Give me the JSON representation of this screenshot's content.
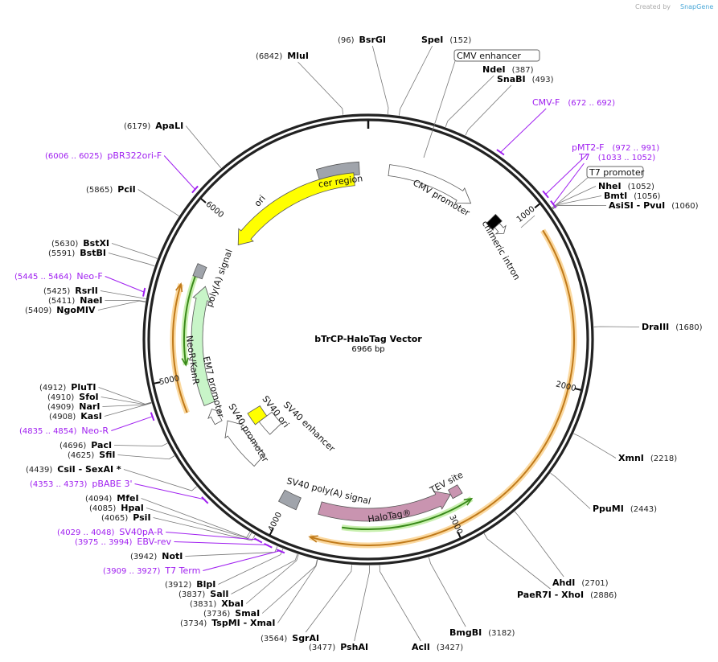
{
  "credit": {
    "created_by": "Created by",
    "brand": "SnapGene"
  },
  "title": "bTrCP-HaloTag Vector",
  "length": "6966 bp",
  "total_bp": 6966,
  "ticks": [
    "1000",
    "2000",
    "3000",
    "4000",
    "5000",
    "6000"
  ],
  "enzymes": [
    {
      "name": "MluI",
      "pos": "(6842)",
      "site": 6842
    },
    {
      "name": "BsrGI",
      "pos": "(96)",
      "site": 96
    },
    {
      "name": "SpeI",
      "pos": "(152)",
      "site": 152
    },
    {
      "name": "NdeI",
      "pos": "(387)",
      "site": 387
    },
    {
      "name": "SnaBI",
      "pos": "(493)",
      "site": 493
    },
    {
      "name": "NheI",
      "pos": "(1052)",
      "site": 1052
    },
    {
      "name": "BmtI",
      "pos": "(1056)",
      "site": 1056
    },
    {
      "name": "AsiSI  - PvuI",
      "pos": "(1060)",
      "site": 1060
    },
    {
      "name": "DraIII",
      "pos": "(1680)",
      "site": 1680
    },
    {
      "name": "XmnI",
      "pos": "(2218)",
      "site": 2218
    },
    {
      "name": "PpuMI",
      "pos": "(2443)",
      "site": 2443
    },
    {
      "name": "AhdI",
      "pos": "(2701)",
      "site": 2701
    },
    {
      "name": "PaeR7I  - XhoI",
      "pos": "(2886)",
      "site": 2886
    },
    {
      "name": "BmgBI",
      "pos": "(3182)",
      "site": 3182
    },
    {
      "name": "AclI",
      "pos": "(3427)",
      "site": 3427
    },
    {
      "name": "PshAI",
      "pos": "(3477)",
      "site": 3477
    },
    {
      "name": "SgrAI",
      "pos": "(3564)",
      "site": 3564
    },
    {
      "name": "TspMI  - XmaI",
      "pos": "(3734)",
      "site": 3734
    },
    {
      "name": "SmaI",
      "pos": "(3736)",
      "site": 3736
    },
    {
      "name": "XbaI",
      "pos": "(3831)",
      "site": 3831
    },
    {
      "name": "SalI",
      "pos": "(3837)",
      "site": 3837
    },
    {
      "name": "BlpI",
      "pos": "(3912)",
      "site": 3912
    },
    {
      "name": "NotI",
      "pos": "(3942)",
      "site": 3942
    },
    {
      "name": "PsiI",
      "pos": "(4065)",
      "site": 4065
    },
    {
      "name": "HpaI",
      "pos": "(4085)",
      "site": 4085
    },
    {
      "name": "MfeI",
      "pos": "(4094)",
      "site": 4094
    },
    {
      "name": "CsiI  - SexAI *",
      "pos": "(4439)",
      "site": 4439
    },
    {
      "name": "SfiI",
      "pos": "(4625)",
      "site": 4625
    },
    {
      "name": "PacI",
      "pos": "(4696)",
      "site": 4696
    },
    {
      "name": "KasI",
      "pos": "(4908)",
      "site": 4908
    },
    {
      "name": "NarI",
      "pos": "(4909)",
      "site": 4909
    },
    {
      "name": "SfoI",
      "pos": "(4910)",
      "site": 4910
    },
    {
      "name": "PluTI",
      "pos": "(4912)",
      "site": 4912
    },
    {
      "name": "NgoMIV",
      "pos": "(5409)",
      "site": 5409
    },
    {
      "name": "NaeI",
      "pos": "(5411)",
      "site": 5411
    },
    {
      "name": "RsrII",
      "pos": "(5425)",
      "site": 5425
    },
    {
      "name": "BstBI",
      "pos": "(5591)",
      "site": 5591
    },
    {
      "name": "BstXI",
      "pos": "(5630)",
      "site": 5630
    },
    {
      "name": "PciI",
      "pos": "(5865)",
      "site": 5865
    },
    {
      "name": "ApaLI",
      "pos": "(6179)",
      "site": 6179
    }
  ],
  "primers": [
    {
      "name": "CMV-F",
      "range": "(672 .. 692)",
      "start": 672,
      "end": 692
    },
    {
      "name": "pMT2-F",
      "range": "(972 .. 991)",
      "start": 972,
      "end": 991
    },
    {
      "name": "T7",
      "range": "(1033 .. 1052)",
      "start": 1033,
      "end": 1052
    },
    {
      "name": "T7 Term",
      "range": "(3909 .. 3927)",
      "start": 3909,
      "end": 3927
    },
    {
      "name": "EBV-rev",
      "range": "(3975 .. 3994)",
      "start": 3975,
      "end": 3994
    },
    {
      "name": "SV40pA-R",
      "range": "(4029 .. 4048)",
      "start": 4029,
      "end": 4048
    },
    {
      "name": "pBABE 3'",
      "range": "(4353 .. 4373)",
      "start": 4353,
      "end": 4373
    },
    {
      "name": "Neo-R",
      "range": "(4835 .. 4854)",
      "start": 4835,
      "end": 4854
    },
    {
      "name": "Neo-F",
      "range": "(5445 .. 5464)",
      "start": 5445,
      "end": 5464
    },
    {
      "name": "pBR322ori-F",
      "range": "(6006 .. 6025)",
      "start": 6006,
      "end": 6025
    }
  ],
  "features": {
    "cmv_enhancer": "CMV enhancer",
    "t7_promoter": "T7 promoter",
    "cer_region": "cer region",
    "cmv_promoter": "CMV promoter",
    "chimeric_intron": "chimeric intron",
    "ori": "ori",
    "polya_signal": "poly(A) signal",
    "neor": "NeoR/KanR",
    "em7": "EM7 promoter",
    "sv40_promoter": "SV40 promoter",
    "sv40_ori": "SV40 ori",
    "sv40_enhancer": "SV40 enhancer",
    "sv40_polya": "SV40 poly(A) signal",
    "halotag": "HaloTag®",
    "tev": "TEV site"
  },
  "colors": {
    "primer": "#a020f0",
    "ori": "#ffff00",
    "neor": "#c8f5c8",
    "halotag": "#c994b0",
    "gray": "#a0a4ab",
    "orf": "#e8a53a",
    "orf_halo": "#fbd9a0",
    "green": "#3a8a1a",
    "green_halo": "#c9f0b0"
  }
}
